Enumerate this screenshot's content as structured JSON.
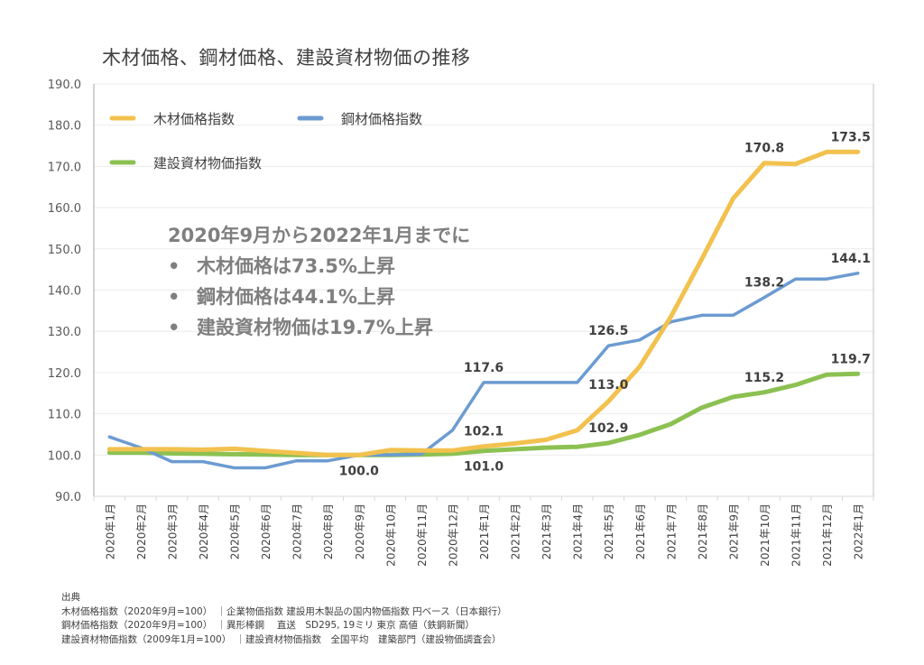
{
  "chart_data": {
    "type": "line",
    "title": "木材価格、鋼材価格、建設資材物価の推移",
    "xlabel": "",
    "ylabel": "",
    "ylim": [
      90,
      190
    ],
    "yticks": [
      "90.0",
      "100.0",
      "110.0",
      "120.0",
      "130.0",
      "140.0",
      "150.0",
      "160.0",
      "170.0",
      "180.0",
      "190.0"
    ],
    "grid": true,
    "legend_position": "top-left",
    "categories": [
      "2020年1月",
      "2020年2月",
      "2020年3月",
      "2020年4月",
      "2020年5月",
      "2020年6月",
      "2020年7月",
      "2020年8月",
      "2020年9月",
      "2020年10月",
      "2020年11月",
      "2020年12月",
      "2021年1月",
      "2021年2月",
      "2021年3月",
      "2021年4月",
      "2021年5月",
      "2021年6月",
      "2021年7月",
      "2021年8月",
      "2021年9月",
      "2021年10月",
      "2021年11月",
      "2021年12月",
      "2022年1月"
    ],
    "series": [
      {
        "name": "木材価格指数",
        "color": "#f2c14e",
        "values": [
          101.4,
          101.4,
          101.4,
          101.3,
          101.5,
          101.0,
          100.5,
          100.0,
          100.0,
          101.2,
          101.1,
          101.1,
          102.1,
          102.8,
          103.7,
          106.0,
          113.0,
          121.4,
          133.5,
          147.6,
          162.2,
          170.8,
          170.6,
          173.5,
          173.5
        ],
        "labels": [
          {
            "index": 12,
            "text": "102.1",
            "pos": "above"
          },
          {
            "index": 16,
            "text": "113.0",
            "pos": "right"
          },
          {
            "index": 21,
            "text": "170.8",
            "pos": "above"
          },
          {
            "index": 24,
            "text": "173.5",
            "pos": "above"
          }
        ]
      },
      {
        "name": "鋼材価格指数",
        "color": "#6b9bd1",
        "values": [
          104.4,
          101.8,
          98.4,
          98.4,
          96.9,
          96.9,
          98.6,
          98.6,
          100.0,
          100.0,
          100.2,
          106.0,
          117.6,
          117.6,
          117.6,
          117.6,
          126.5,
          127.9,
          132.3,
          133.9,
          133.9,
          138.2,
          142.7,
          142.7,
          144.1
        ],
        "labels": [
          {
            "index": 12,
            "text": "117.6",
            "pos": "above"
          },
          {
            "index": 16,
            "text": "126.5",
            "pos": "above"
          },
          {
            "index": 21,
            "text": "138.2",
            "pos": "above"
          },
          {
            "index": 24,
            "text": "144.1",
            "pos": "above"
          }
        ]
      },
      {
        "name": "建設資材物価指数",
        "color": "#8cc152",
        "values": [
          100.6,
          100.6,
          100.4,
          100.3,
          100.2,
          100.1,
          100.0,
          100.0,
          100.0,
          100.0,
          100.1,
          100.3,
          101.0,
          101.4,
          101.8,
          102.0,
          102.9,
          104.9,
          107.5,
          111.5,
          114.1,
          115.2,
          117.0,
          119.5,
          119.7
        ],
        "labels": [
          {
            "index": 8,
            "text": "100.0",
            "pos": "below"
          },
          {
            "index": 12,
            "text": "101.0",
            "pos": "below"
          },
          {
            "index": 16,
            "text": "102.9",
            "pos": "above"
          },
          {
            "index": 21,
            "text": "115.2",
            "pos": "above"
          },
          {
            "index": 24,
            "text": "119.7",
            "pos": "above"
          }
        ]
      }
    ]
  },
  "annotation": {
    "heading": "2020年9月から2022年1月までに",
    "bullet_symbol": "•",
    "items": [
      "木材価格は73.5%上昇",
      "鋼材価格は44.1%上昇",
      "建設資材物価は19.7%上昇"
    ]
  },
  "source": {
    "heading": "出典",
    "lines": [
      "木材価格指数（2020年9月=100）　｜企業物価指数  建設用木製品の国内物価指数  円ベース（日本銀行）",
      "鋼材価格指数（2020年9月=100）　｜異形棒鋼　 直送　SD295, 19ミリ 東京 高値（鉄鋼新聞）",
      "建設資材物価指数（2009年1月=100）　｜建設資材物価指数　全国平均　建築部門（建設物価調査会）"
    ]
  }
}
